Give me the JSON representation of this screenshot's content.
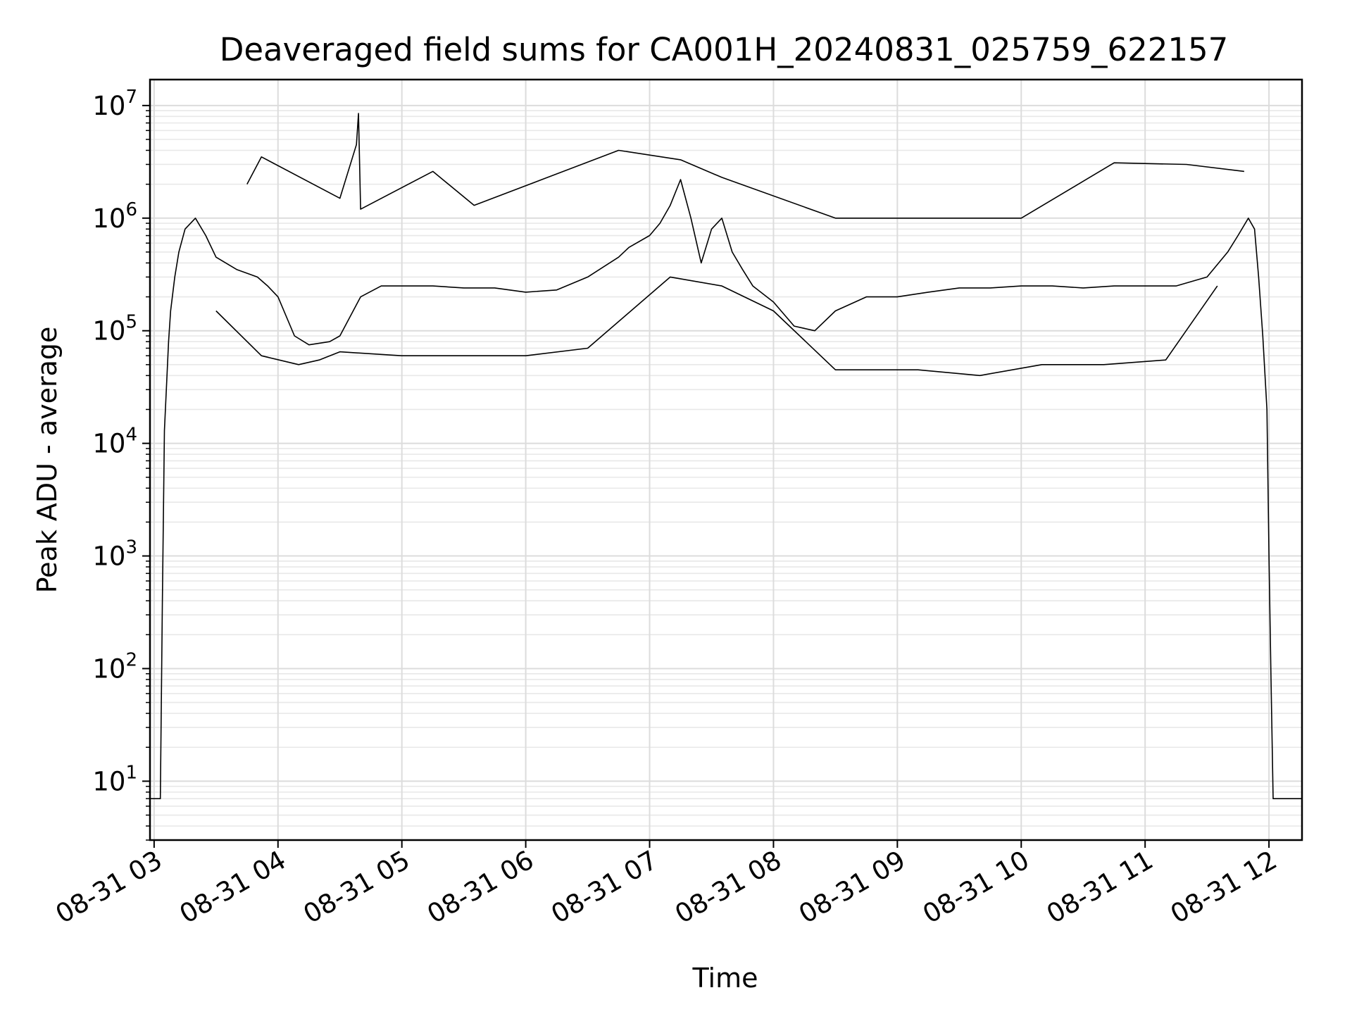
{
  "chart_data": {
    "type": "line",
    "title": "Deaveraged field sums for CA001H_20240831_025759_622157",
    "xlabel": "Time",
    "ylabel": "Peak ADU - average",
    "y_scale": "log",
    "ylim": [
      3,
      17000000
    ],
    "xlim": [
      "2024-08-31T02:58",
      "2024-08-31T12:16"
    ],
    "grid": true,
    "series_color": "#000000",
    "x_ticks": [
      {
        "value": "2024-08-31T03:00",
        "label": "08-31 03"
      },
      {
        "value": "2024-08-31T04:00",
        "label": "08-31 04"
      },
      {
        "value": "2024-08-31T05:00",
        "label": "08-31 05"
      },
      {
        "value": "2024-08-31T06:00",
        "label": "08-31 06"
      },
      {
        "value": "2024-08-31T07:00",
        "label": "08-31 07"
      },
      {
        "value": "2024-08-31T08:00",
        "label": "08-31 08"
      },
      {
        "value": "2024-08-31T09:00",
        "label": "08-31 09"
      },
      {
        "value": "2024-08-31T10:00",
        "label": "08-31 10"
      },
      {
        "value": "2024-08-31T11:00",
        "label": "08-31 11"
      },
      {
        "value": "2024-08-31T12:00",
        "label": "08-31 12"
      }
    ],
    "y_ticks": [
      {
        "value": 10,
        "base": "10",
        "exp": "1"
      },
      {
        "value": 100,
        "base": "10",
        "exp": "2"
      },
      {
        "value": 1000,
        "base": "10",
        "exp": "3"
      },
      {
        "value": 10000,
        "base": "10",
        "exp": "4"
      },
      {
        "value": 100000,
        "base": "10",
        "exp": "5"
      },
      {
        "value": 1000000,
        "base": "10",
        "exp": "6"
      },
      {
        "value": 10000000,
        "base": "10",
        "exp": "7"
      }
    ],
    "series": [
      {
        "x": [
          "2024-08-31T02:58",
          "2024-08-31T03:03",
          "2024-08-31T03:04",
          "2024-08-31T03:05",
          "2024-08-31T03:07",
          "2024-08-31T03:08",
          "2024-08-31T03:10",
          "2024-08-31T03:12",
          "2024-08-31T03:15",
          "2024-08-31T03:20",
          "2024-08-31T03:25",
          "2024-08-31T03:30",
          "2024-08-31T03:40",
          "2024-08-31T03:50",
          "2024-08-31T03:55",
          "2024-08-31T04:00",
          "2024-08-31T04:08",
          "2024-08-31T04:15",
          "2024-08-31T04:25",
          "2024-08-31T04:30",
          "2024-08-31T04:40",
          "2024-08-31T04:50",
          "2024-08-31T05:00",
          "2024-08-31T05:15",
          "2024-08-31T05:30",
          "2024-08-31T05:45",
          "2024-08-31T06:00",
          "2024-08-31T06:15",
          "2024-08-31T06:30",
          "2024-08-31T06:45",
          "2024-08-31T06:50",
          "2024-08-31T07:00",
          "2024-08-31T07:05",
          "2024-08-31T07:10",
          "2024-08-31T07:15",
          "2024-08-31T07:20",
          "2024-08-31T07:25",
          "2024-08-31T07:30",
          "2024-08-31T07:35",
          "2024-08-31T07:40",
          "2024-08-31T07:45",
          "2024-08-31T07:50",
          "2024-08-31T08:00",
          "2024-08-31T08:10",
          "2024-08-31T08:20",
          "2024-08-31T08:30",
          "2024-08-31T08:45",
          "2024-08-31T09:00",
          "2024-08-31T09:15",
          "2024-08-31T09:30",
          "2024-08-31T09:45",
          "2024-08-31T10:00",
          "2024-08-31T10:15",
          "2024-08-31T10:30",
          "2024-08-31T10:45",
          "2024-08-31T11:00",
          "2024-08-31T11:15",
          "2024-08-31T11:30",
          "2024-08-31T11:40",
          "2024-08-31T11:45",
          "2024-08-31T11:50",
          "2024-08-31T11:53",
          "2024-08-31T11:55",
          "2024-08-31T11:57",
          "2024-08-31T11:59",
          "2024-08-31T12:00",
          "2024-08-31T12:01",
          "2024-08-31T12:02",
          "2024-08-31T12:03",
          "2024-08-31T12:04",
          "2024-08-31T12:16"
        ],
        "y": [
          7,
          7,
          400,
          13000,
          80000,
          150000,
          300000,
          500000,
          800000,
          1000000,
          700000,
          450000,
          350000,
          300000,
          250000,
          200000,
          90000,
          75000,
          80000,
          90000,
          200000,
          250000,
          250000,
          250000,
          240000,
          240000,
          220000,
          230000,
          300000,
          450000,
          550000,
          700000,
          900000,
          1300000,
          2200000,
          1000000,
          400000,
          800000,
          1000000,
          500000,
          350000,
          250000,
          180000,
          110000,
          100000,
          150000,
          200000,
          200000,
          220000,
          240000,
          240000,
          250000,
          250000,
          240000,
          250000,
          250000,
          250000,
          300000,
          500000,
          700000,
          1000000,
          800000,
          300000,
          90000,
          20000,
          1000,
          80,
          7,
          7,
          7,
          7
        ]
      },
      {
        "x": [
          "2024-08-31T03:45",
          "2024-08-31T03:52",
          "2024-08-31T04:30",
          "2024-08-31T04:38",
          "2024-08-31T04:39",
          "2024-08-31T04:40",
          "2024-08-31T05:15",
          "2024-08-31T05:35",
          "2024-08-31T06:45",
          "2024-08-31T07:15",
          "2024-08-31T07:35",
          "2024-08-31T08:30",
          "2024-08-31T09:20",
          "2024-08-31T10:00",
          "2024-08-31T10:45",
          "2024-08-31T11:20",
          "2024-08-31T11:48"
        ],
        "y": [
          2000000,
          3500000,
          1500000,
          4500000,
          8500000,
          1200000,
          2600000,
          1300000,
          4000000,
          3300000,
          2300000,
          1000000,
          1000000,
          1000000,
          3100000,
          3000000,
          2600000
        ]
      },
      {
        "x": [
          "2024-08-31T03:30",
          "2024-08-31T03:52",
          "2024-08-31T04:10",
          "2024-08-31T04:20",
          "2024-08-31T04:30",
          "2024-08-31T05:00",
          "2024-08-31T05:30",
          "2024-08-31T06:00",
          "2024-08-31T06:30",
          "2024-08-31T07:10",
          "2024-08-31T07:35",
          "2024-08-31T08:00",
          "2024-08-31T08:30",
          "2024-08-31T08:50",
          "2024-08-31T09:10",
          "2024-08-31T09:40",
          "2024-08-31T10:10",
          "2024-08-31T10:40",
          "2024-08-31T11:10",
          "2024-08-31T11:35"
        ],
        "y": [
          150000,
          60000,
          50000,
          55000,
          65000,
          60000,
          60000,
          60000,
          70000,
          300000,
          250000,
          150000,
          45000,
          45000,
          45000,
          40000,
          50000,
          50000,
          55000,
          250000
        ]
      }
    ]
  }
}
